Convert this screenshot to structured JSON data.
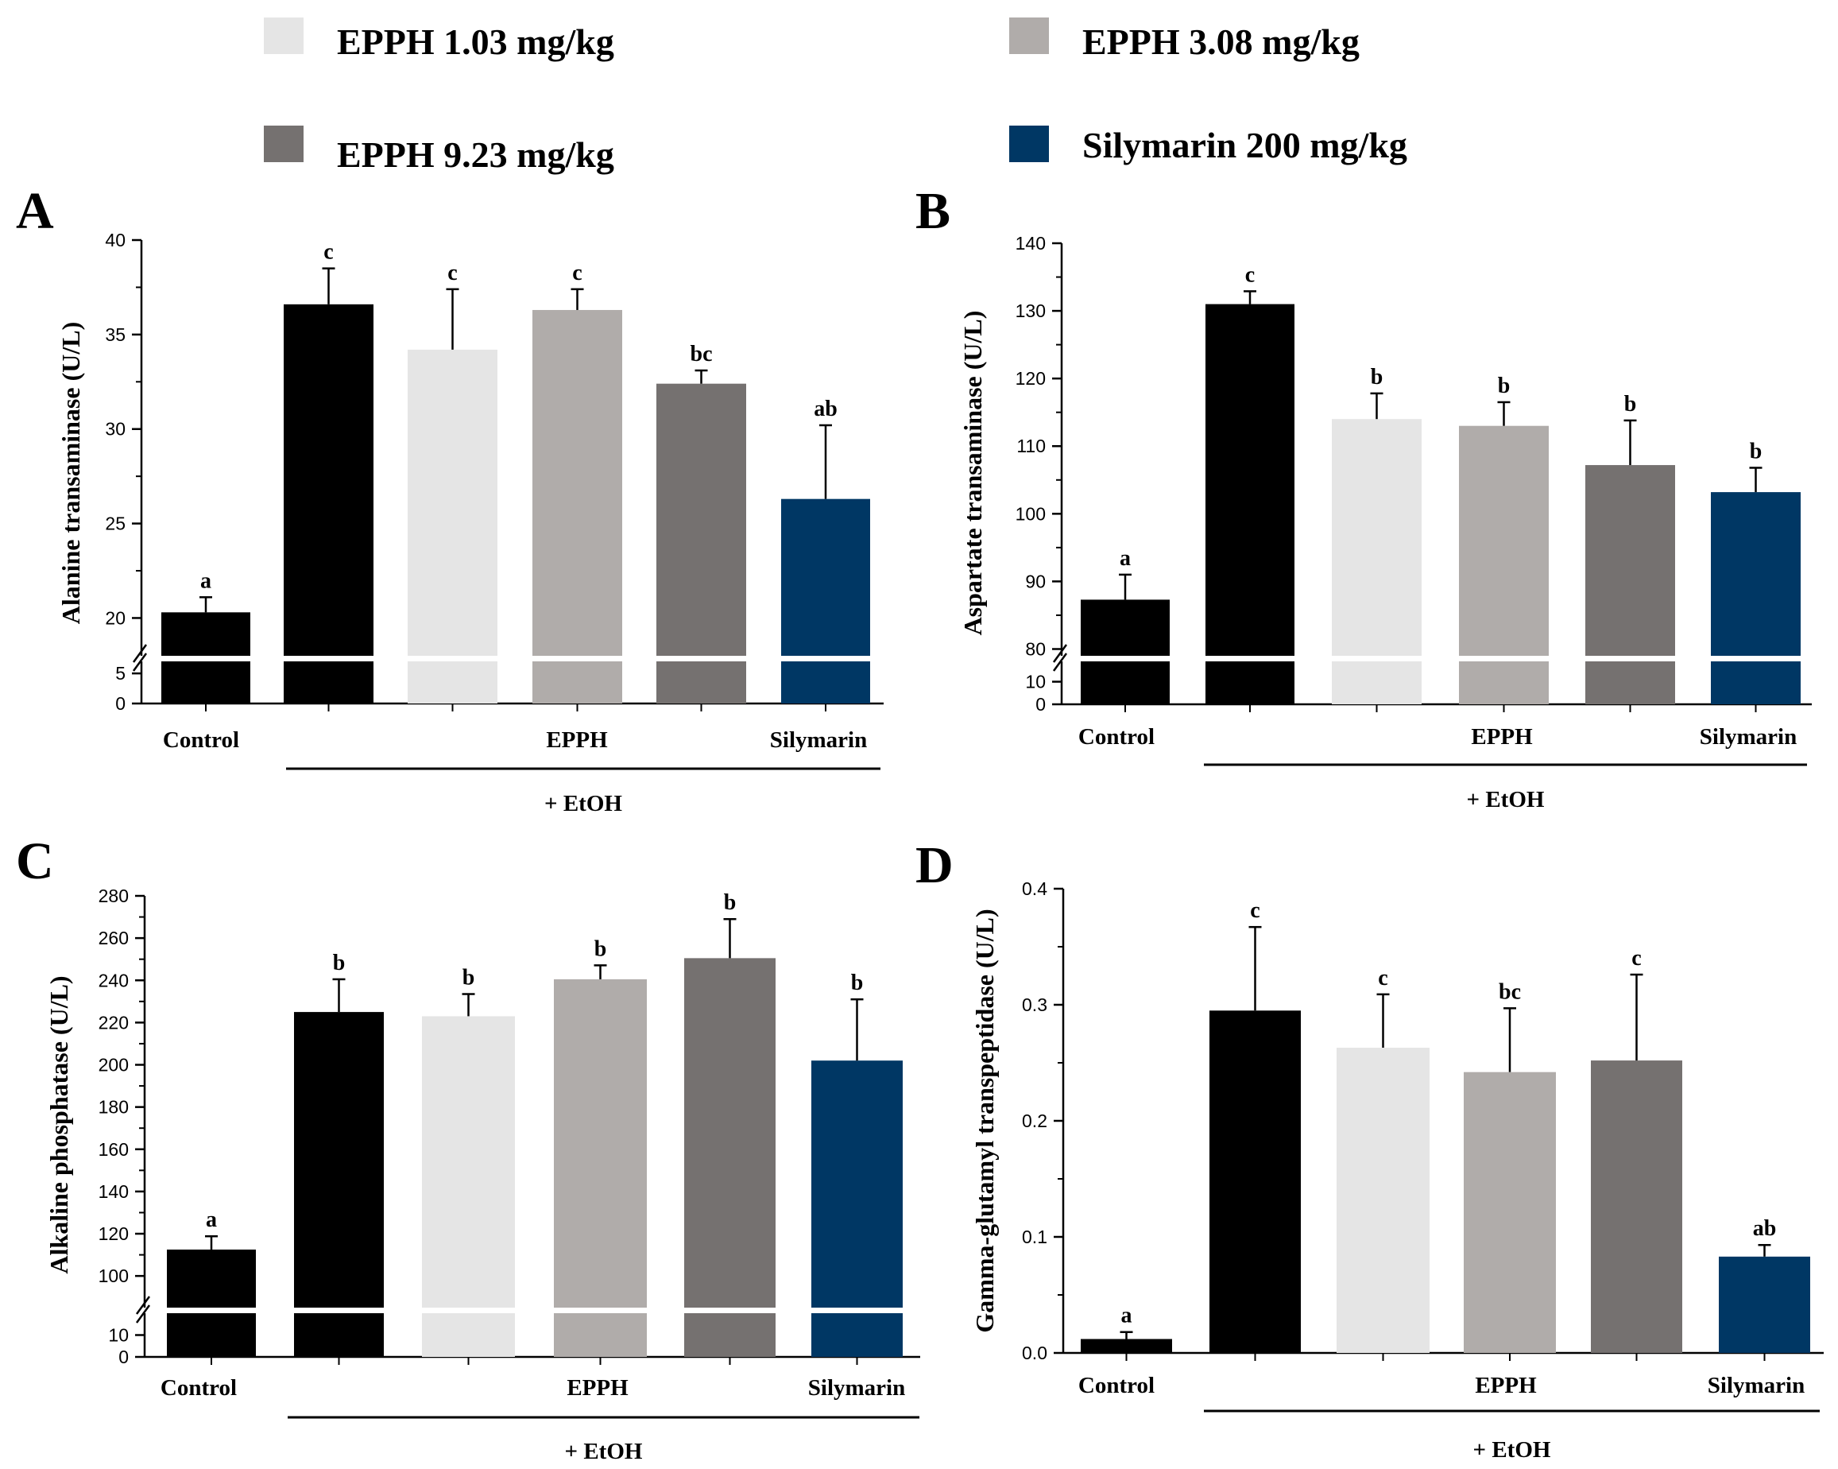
{
  "legend": [
    {
      "label": "EPPH 1.03 mg/kg",
      "color": "#e5e5e5"
    },
    {
      "label": "EPPH 3.08 mg/kg",
      "color": "#b0acaa"
    },
    {
      "label": "EPPH 9.23 mg/kg",
      "color": "#757170"
    },
    {
      "label": "Silymarin 200 mg/kg",
      "color": "#003764"
    }
  ],
  "chart_data": [
    {
      "panel": "A",
      "type": "bar",
      "ylabel": "Alanine transaminase (U/L)",
      "categories": [
        "Control",
        "EtOH",
        "EPPH 1.03 mg/kg",
        "EPPH 3.08 mg/kg",
        "EPPH 9.23 mg/kg",
        "Silymarin 200 mg/kg"
      ],
      "colors": [
        "#000000",
        "#000000",
        "#e5e5e5",
        "#b0acaa",
        "#757170",
        "#003764"
      ],
      "values": [
        20.3,
        36.6,
        34.2,
        36.3,
        32.4,
        26.3
      ],
      "errors": [
        0.8,
        1.9,
        3.2,
        1.1,
        0.7,
        3.9
      ],
      "labels": [
        "a",
        "c",
        "c",
        "c",
        "bc",
        "ab"
      ],
      "upper_ylim": [
        18,
        40
      ],
      "upper_ticks": [
        20,
        25,
        30,
        35,
        40
      ],
      "lower_ylim": [
        0,
        7
      ],
      "lower_ticks": [
        0,
        5
      ],
      "axis_break": true,
      "group_labels": {
        "control": "Control",
        "epph": "EPPH",
        "silymarin": "Silymarin",
        "etoh": "+ EtOH"
      }
    },
    {
      "panel": "B",
      "type": "bar",
      "ylabel": "Aspartate transaminase (U/L)",
      "categories": [
        "Control",
        "EtOH",
        "EPPH 1.03 mg/kg",
        "EPPH 3.08 mg/kg",
        "EPPH 9.23 mg/kg",
        "Silymarin 200 mg/kg"
      ],
      "colors": [
        "#000000",
        "#000000",
        "#e5e5e5",
        "#b0acaa",
        "#757170",
        "#003764"
      ],
      "values": [
        87.3,
        131.0,
        114.0,
        113.0,
        107.2,
        103.2
      ],
      "errors": [
        3.7,
        1.9,
        3.8,
        3.5,
        6.6,
        3.6
      ],
      "labels": [
        "a",
        "c",
        "b",
        "b",
        "b",
        "b"
      ],
      "upper_ylim": [
        79,
        140
      ],
      "upper_ticks": [
        80,
        90,
        100,
        110,
        120,
        130,
        140
      ],
      "lower_ylim": [
        0,
        19
      ],
      "lower_ticks": [
        0,
        10
      ],
      "axis_break": true,
      "group_labels": {
        "control": "Control",
        "epph": "EPPH",
        "silymarin": "Silymarin",
        "etoh": "+ EtOH"
      }
    },
    {
      "panel": "C",
      "type": "bar",
      "ylabel": "Alkaline phosphatase (U/L)",
      "categories": [
        "Control",
        "EtOH",
        "EPPH 1.03 mg/kg",
        "EPPH 3.08 mg/kg",
        "EPPH 9.23 mg/kg",
        "Silymarin 200 mg/kg"
      ],
      "colors": [
        "#000000",
        "#000000",
        "#e5e5e5",
        "#b0acaa",
        "#757170",
        "#003764"
      ],
      "values": [
        112.5,
        225.0,
        223.0,
        240.5,
        250.5,
        202.0
      ],
      "errors": [
        6.3,
        15.5,
        10.5,
        6.6,
        18.5,
        29.0
      ],
      "labels": [
        "a",
        "b",
        "b",
        "b",
        "b",
        "b"
      ],
      "upper_ylim": [
        85,
        280
      ],
      "upper_ticks": [
        100,
        120,
        140,
        160,
        180,
        200,
        220,
        240,
        260,
        280
      ],
      "lower_ylim": [
        0,
        20
      ],
      "lower_ticks": [
        0,
        10
      ],
      "axis_break": true,
      "group_labels": {
        "control": "Control",
        "epph": "EPPH",
        "silymarin": "Silymarin",
        "etoh": "+ EtOH"
      }
    },
    {
      "panel": "D",
      "type": "bar",
      "ylabel": "Gamma-glutamyl transpeptidase (U/L)",
      "categories": [
        "Control",
        "EtOH",
        "EPPH 1.03 mg/kg",
        "EPPH 3.08 mg/kg",
        "EPPH 9.23 mg/kg",
        "Silymarin 200 mg/kg"
      ],
      "colors": [
        "#000000",
        "#000000",
        "#e5e5e5",
        "#b0acaa",
        "#757170",
        "#003764"
      ],
      "values": [
        0.012,
        0.295,
        0.263,
        0.242,
        0.252,
        0.083
      ],
      "errors": [
        0.006,
        0.072,
        0.046,
        0.055,
        0.074,
        0.01
      ],
      "labels": [
        "a",
        "c",
        "c",
        "bc",
        "c",
        "ab"
      ],
      "ylim": [
        0,
        0.4
      ],
      "yticks": [
        "0.0",
        "0.1",
        "0.2",
        "0.3",
        "0.4"
      ],
      "axis_break": false,
      "group_labels": {
        "control": "Control",
        "epph": "EPPH",
        "silymarin": "Silymarin",
        "etoh": "+ EtOH"
      }
    }
  ]
}
